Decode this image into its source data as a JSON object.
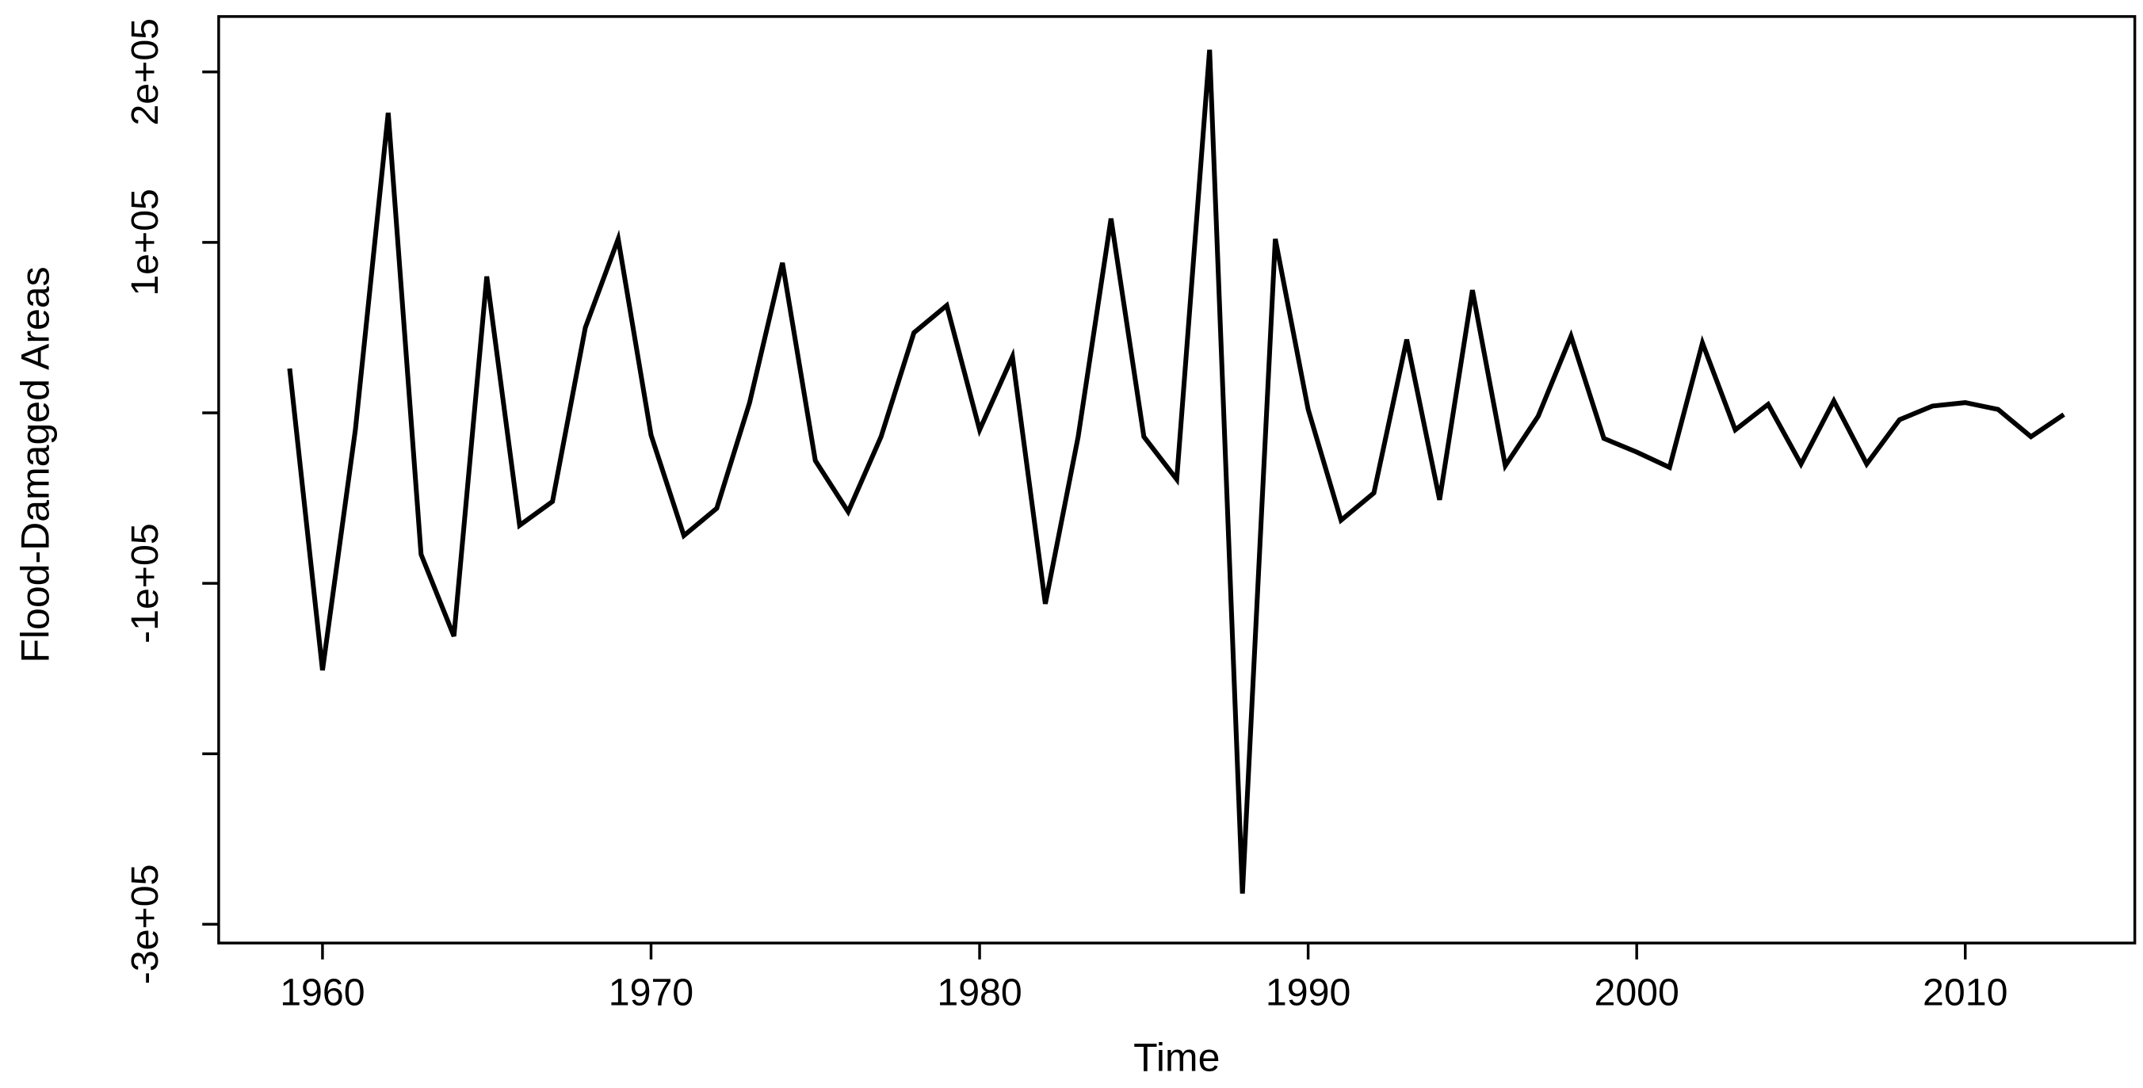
{
  "chart_data": {
    "type": "line",
    "x_label": "Time",
    "y_label": "Flood-Damaged Areas",
    "color": "#000000",
    "x": [
      1959,
      1960,
      1961,
      1962,
      1963,
      1964,
      1965,
      1966,
      1967,
      1968,
      1969,
      1970,
      1971,
      1972,
      1973,
      1974,
      1975,
      1976,
      1977,
      1978,
      1979,
      1980,
      1981,
      1982,
      1983,
      1984,
      1985,
      1986,
      1987,
      1988,
      1989,
      1990,
      1991,
      1992,
      1993,
      1994,
      1995,
      1996,
      1997,
      1998,
      1999,
      2000,
      2001,
      2002,
      2003,
      2004,
      2005,
      2006,
      2007,
      2008,
      2009,
      2010,
      2011,
      2012,
      2013
    ],
    "values": [
      26000,
      -151000,
      -10000,
      176000,
      -83000,
      -131000,
      80000,
      -66000,
      -52000,
      50000,
      102000,
      -13000,
      -72000,
      -56000,
      6000,
      88000,
      -28000,
      -58000,
      -14000,
      47000,
      63000,
      -10000,
      33000,
      -112000,
      -14000,
      114000,
      -14000,
      -39000,
      213000,
      -282000,
      102000,
      2000,
      -63000,
      -47000,
      43000,
      -51000,
      72000,
      -31000,
      -2000,
      45000,
      -15000,
      -23000,
      -32000,
      41000,
      -10000,
      5000,
      -30000,
      7000,
      -30000,
      -4000,
      4000,
      6000,
      2000,
      -14000,
      -1000
    ],
    "xlim": [
      1956.84,
      2015.16
    ],
    "xticks": [
      1960,
      1970,
      1980,
      1990,
      2000,
      2010
    ],
    "ylim": [
      -311000,
      232500
    ],
    "yticks": [
      {
        "value": -300000,
        "label": "-3e+05"
      },
      {
        "value": -200000,
        "label": null
      },
      {
        "value": -100000,
        "label": "-1e+05"
      },
      {
        "value": 0,
        "label": null
      },
      {
        "value": 100000,
        "label": "1e+05"
      },
      {
        "value": 200000,
        "label": "2e+05"
      }
    ],
    "grid": false
  }
}
